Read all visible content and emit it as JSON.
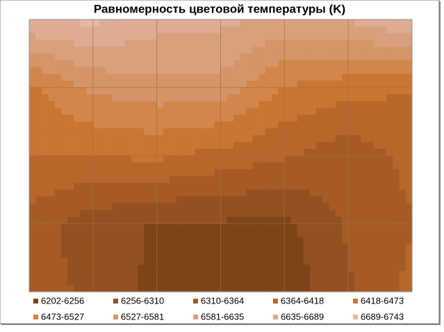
{
  "chart_data": {
    "type": "contour",
    "title": "Равномерность цветовой температуры (K)",
    "z": [
      [
        6690,
        6700,
        6660,
        6650,
        6620,
        6640,
        6690
      ],
      [
        6460,
        6540,
        6560,
        6560,
        6470,
        6440,
        6420
      ],
      [
        6420,
        6420,
        6430,
        6400,
        6370,
        6330,
        6380
      ],
      [
        6340,
        6280,
        6250,
        6250,
        6240,
        6320,
        6360
      ],
      [
        6330,
        6300,
        6240,
        6210,
        6220,
        6300,
        6380
      ]
    ],
    "levels": [
      6202,
      6256,
      6310,
      6364,
      6418,
      6473,
      6527,
      6581,
      6635,
      6689,
      6743
    ],
    "series": [
      {
        "name": "6202-6256",
        "color": "#7e4419"
      },
      {
        "name": "6256-6310",
        "color": "#945020"
      },
      {
        "name": "6310-6364",
        "color": "#a65b24"
      },
      {
        "name": "6364-6418",
        "color": "#b8672b"
      },
      {
        "name": "6418-6473",
        "color": "#c97533"
      },
      {
        "name": "6473-6527",
        "color": "#d2864a"
      },
      {
        "name": "6527-6581",
        "color": "#d59568"
      },
      {
        "name": "6581-6635",
        "color": "#d9a07e"
      },
      {
        "name": "6635-6689",
        "color": "#deac93"
      },
      {
        "name": "6689-6743",
        "color": "#e4b9a5"
      }
    ],
    "grid": true
  }
}
